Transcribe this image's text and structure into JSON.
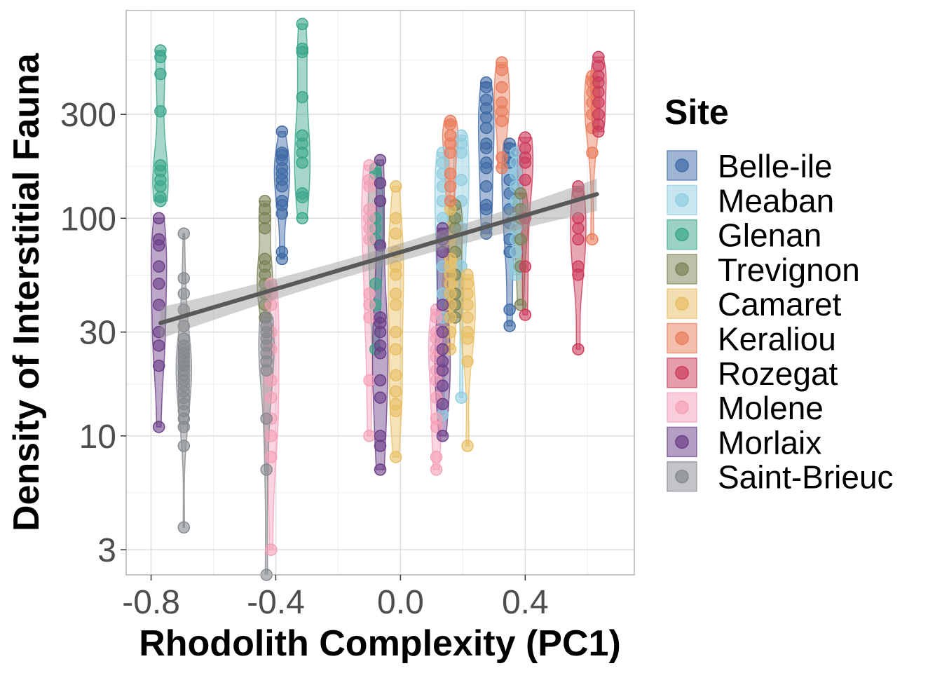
{
  "chart_data": {
    "type": "scatter",
    "xlabel": "Rhodolith Complexity (PC1)",
    "ylabel": "Density of Interstitial Fauna",
    "xlim": [
      -0.88,
      0.75
    ],
    "ylim": [
      2.3,
      900
    ],
    "y_scale": "log",
    "grid": true,
    "legend_title": "Site",
    "legend_position": "right",
    "x_ticks": [
      -0.8,
      -0.4,
      0.0,
      0.4
    ],
    "x_tick_labels": [
      "-0.8",
      "-0.4",
      "0.0",
      "0.4"
    ],
    "y_ticks": [
      3,
      10,
      30,
      100,
      300
    ],
    "y_tick_labels": [
      "3",
      "10",
      "30",
      "100",
      "300"
    ],
    "trend_line": {
      "x": [
        -0.77,
        0.63
      ],
      "y": [
        33,
        129
      ],
      "ci_lower": [
        28,
        108
      ],
      "ci_upper": [
        39,
        152
      ],
      "color": "#595959"
    },
    "series": [
      {
        "name": "Belle-ile",
        "color": "#3f6aa6",
        "groups": [
          {
            "x": -0.38,
            "values": [
              250,
              200,
              195,
              185,
              170,
              160,
              150,
              140,
              120,
              115,
              105,
              70,
              65
            ]
          },
          {
            "x": 0.275,
            "values": [
              420,
              400,
              350,
              320,
              290,
              260,
              220,
              210,
              180,
              170,
              140,
              115,
              110,
              90,
              85
            ]
          },
          {
            "x": 0.35,
            "values": [
              220,
              210,
              190,
              180,
              150,
              130,
              110,
              95,
              80,
              70,
              38,
              32
            ]
          }
        ]
      },
      {
        "name": "Meaban",
        "color": "#8fcde0",
        "groups": [
          {
            "x": 0.135,
            "values": [
              200,
              180,
              160,
              140,
              120,
              100,
              80,
              60,
              45,
              40,
              35,
              12.5
            ]
          },
          {
            "x": 0.195,
            "values": [
              240,
              220,
              200,
              150,
              120,
              90,
              60,
              15
            ]
          },
          {
            "x": 0.37,
            "values": [
              200,
              180,
              160,
              140,
              120,
              100,
              90,
              80,
              70,
              60,
              55
            ]
          }
        ]
      },
      {
        "name": "Glenan",
        "color": "#3aa68a",
        "groups": [
          {
            "x": -0.77,
            "values": [
              590,
              550,
              460,
              310,
              175,
              165,
              150,
              140,
              125,
              120
            ]
          },
          {
            "x": -0.315,
            "values": [
              780,
              600,
              580,
              360,
              240,
              220,
              200,
              180,
              130,
              125,
              100
            ]
          },
          {
            "x": -0.08,
            "values": [
              170,
              160,
              100,
              90,
              80,
              50,
              40,
              25
            ]
          }
        ]
      },
      {
        "name": "Trevignon",
        "color": "#7a8356",
        "groups": [
          {
            "x": -0.435,
            "values": [
              120,
              110,
              100,
              90,
              65,
              60,
              55,
              50,
              45,
              40,
              35
            ]
          },
          {
            "x": 0.175,
            "values": [
              115,
              100,
              90,
              70,
              55,
              45,
              40,
              35
            ]
          },
          {
            "x": 0.385,
            "values": [
              130,
              110,
              100,
              80,
              60,
              40
            ]
          }
        ]
      },
      {
        "name": "Camaret",
        "color": "#e8be63",
        "groups": [
          {
            "x": -0.015,
            "values": [
              140,
              100,
              85,
              70,
              60,
              55,
              45,
              40,
              30,
              25,
              19,
              16,
              14,
              13,
              8
            ]
          },
          {
            "x": 0.16,
            "values": [
              110,
              80,
              65,
              60,
              55,
              50,
              45,
              40,
              35,
              30,
              25
            ]
          },
          {
            "x": 0.215,
            "values": [
              55,
              50,
              45,
              40,
              35,
              30,
              28,
              22,
              9
            ]
          }
        ]
      },
      {
        "name": "Keraliou",
        "color": "#ea7d5c",
        "groups": [
          {
            "x": 0.16,
            "values": [
              280,
              270,
              240,
              220,
              200,
              160,
              140,
              120
            ]
          },
          {
            "x": 0.325,
            "values": [
              520,
              480,
              400,
              340,
              310,
              280,
              190,
              170
            ]
          },
          {
            "x": 0.615,
            "values": [
              450,
              420,
              380,
              340,
              300,
              260,
              200,
              80
            ]
          }
        ]
      },
      {
        "name": "Rozegat",
        "color": "#cc3b5a",
        "groups": [
          {
            "x": 0.4,
            "values": [
              235,
              210,
              190,
              180,
              150,
              100,
              60,
              36
            ]
          },
          {
            "x": 0.57,
            "values": [
              140,
              130,
              100,
              90,
              80,
              60,
              55,
              25
            ]
          },
          {
            "x": 0.635,
            "values": [
              550,
              500,
              450,
              420,
              380,
              340,
              300,
              270,
              250
            ]
          }
        ]
      },
      {
        "name": "Molene",
        "color": "#f5a0b8",
        "groups": [
          {
            "x": -0.1,
            "values": [
              175,
              150,
              140,
              110,
              100,
              90,
              80,
              45,
              40,
              35,
              18,
              10
            ]
          },
          {
            "x": -0.415,
            "values": [
              50,
              45,
              40,
              30,
              25,
              18,
              15,
              12,
              10,
              8,
              3
            ]
          },
          {
            "x": 0.115,
            "values": [
              38,
              35,
              30,
              28,
              25,
              23,
              20,
              18,
              15,
              12,
              11,
              8,
              7
            ]
          }
        ]
      },
      {
        "name": "Morlaix",
        "color": "#6b3e87",
        "groups": [
          {
            "x": -0.775,
            "values": [
              100,
              80,
              75,
              60,
              50,
              40,
              30,
              26,
              21,
              11
            ]
          },
          {
            "x": -0.065,
            "values": [
              185,
              145,
              120,
              75,
              35,
              33,
              30,
              26,
              24,
              18,
              15,
              10,
              9,
              7
            ]
          },
          {
            "x": 0.135,
            "values": [
              90,
              85,
              80,
              70,
              40,
              30,
              25,
              22,
              20,
              17,
              14,
              10
            ]
          }
        ]
      },
      {
        "name": "Saint-Brieuc",
        "color": "#868a8f",
        "groups": [
          {
            "x": -0.695,
            "values": [
              85,
              53,
              45,
              38,
              32,
              28,
              26,
              25,
              24,
              23,
              22,
              21,
              21,
              20,
              19,
              18,
              17,
              16,
              15,
              14,
              13,
              12,
              11,
              9,
              3.8
            ]
          },
          {
            "x": -0.43,
            "values": [
              35,
              32,
              30,
              28,
              26,
              24,
              22,
              20,
              12,
              7,
              2.3
            ]
          }
        ]
      }
    ]
  }
}
